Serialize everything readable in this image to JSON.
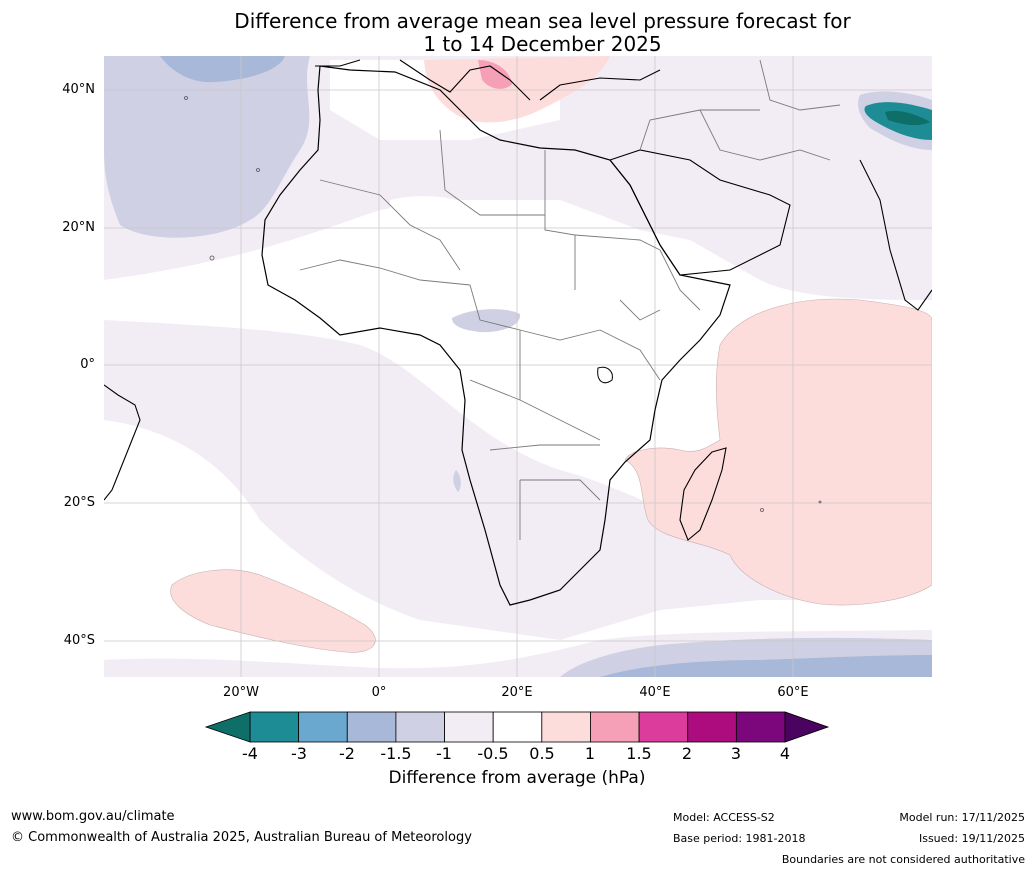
{
  "title": {
    "line1": "Difference from average mean sea level pressure forecast for",
    "line2": "1 to 14 December 2025"
  },
  "map": {
    "lat_labels": [
      "40°N",
      "20°N",
      "0°",
      "20°S",
      "40°S"
    ],
    "lon_labels": [
      "20°W",
      "0°",
      "20°E",
      "40°E",
      "60°E"
    ],
    "extent": {
      "lon_min": -40,
      "lon_max": 80,
      "lat_min": -45,
      "lat_max": 45
    },
    "regions": [
      {
        "name": "north-atlantic-low",
        "category": "-1.5 to -1"
      },
      {
        "name": "north-atlantic-core-low",
        "category": "-2 to -1.5"
      },
      {
        "name": "tropical-low-band",
        "category": "-1 to -0.5"
      },
      {
        "name": "mediterranean-high",
        "category": "0.5 to 1"
      },
      {
        "name": "adriatic-high-core",
        "category": "1 to 1.5"
      },
      {
        "name": "indian-ocean-high",
        "category": "0.5 to 1"
      },
      {
        "name": "south-atlantic-high",
        "category": "0.5 to 1"
      },
      {
        "name": "southern-ocean-low",
        "category": "-1.5 to -1"
      },
      {
        "name": "southern-ocean-deep-low",
        "category": "-2 to -1.5"
      },
      {
        "name": "tibetan-plateau-low",
        "category": "-4 to -3"
      }
    ]
  },
  "colorbar": {
    "ticks": [
      "-4",
      "-3",
      "-2",
      "-1.5",
      "-1",
      "-0.5",
      "0.5",
      "1",
      "1.5",
      "2",
      "3",
      "4"
    ],
    "colors": [
      "#0e6e68",
      "#1e8c94",
      "#6aa8d0",
      "#a8b8d8",
      "#d0d0e4",
      "#f2ecf4",
      "#ffffff",
      "#fddcdc",
      "#f6a0b8",
      "#dc3c9c",
      "#ac0c7e",
      "#7c067c",
      "#4a0460"
    ],
    "label": "Difference from average (hPa)"
  },
  "footer": {
    "url": "www.bom.gov.au/climate",
    "copyright": "© Commonwealth of Australia 2025, Australian Bureau of Meteorology",
    "model": "Model: ACCESS-S2",
    "base_period": "Base period: 1981-2018",
    "model_run": "Model run: 17/11/2025",
    "issued": "Issued: 19/11/2025",
    "disclaimer": "Boundaries are not considered authoritative"
  }
}
